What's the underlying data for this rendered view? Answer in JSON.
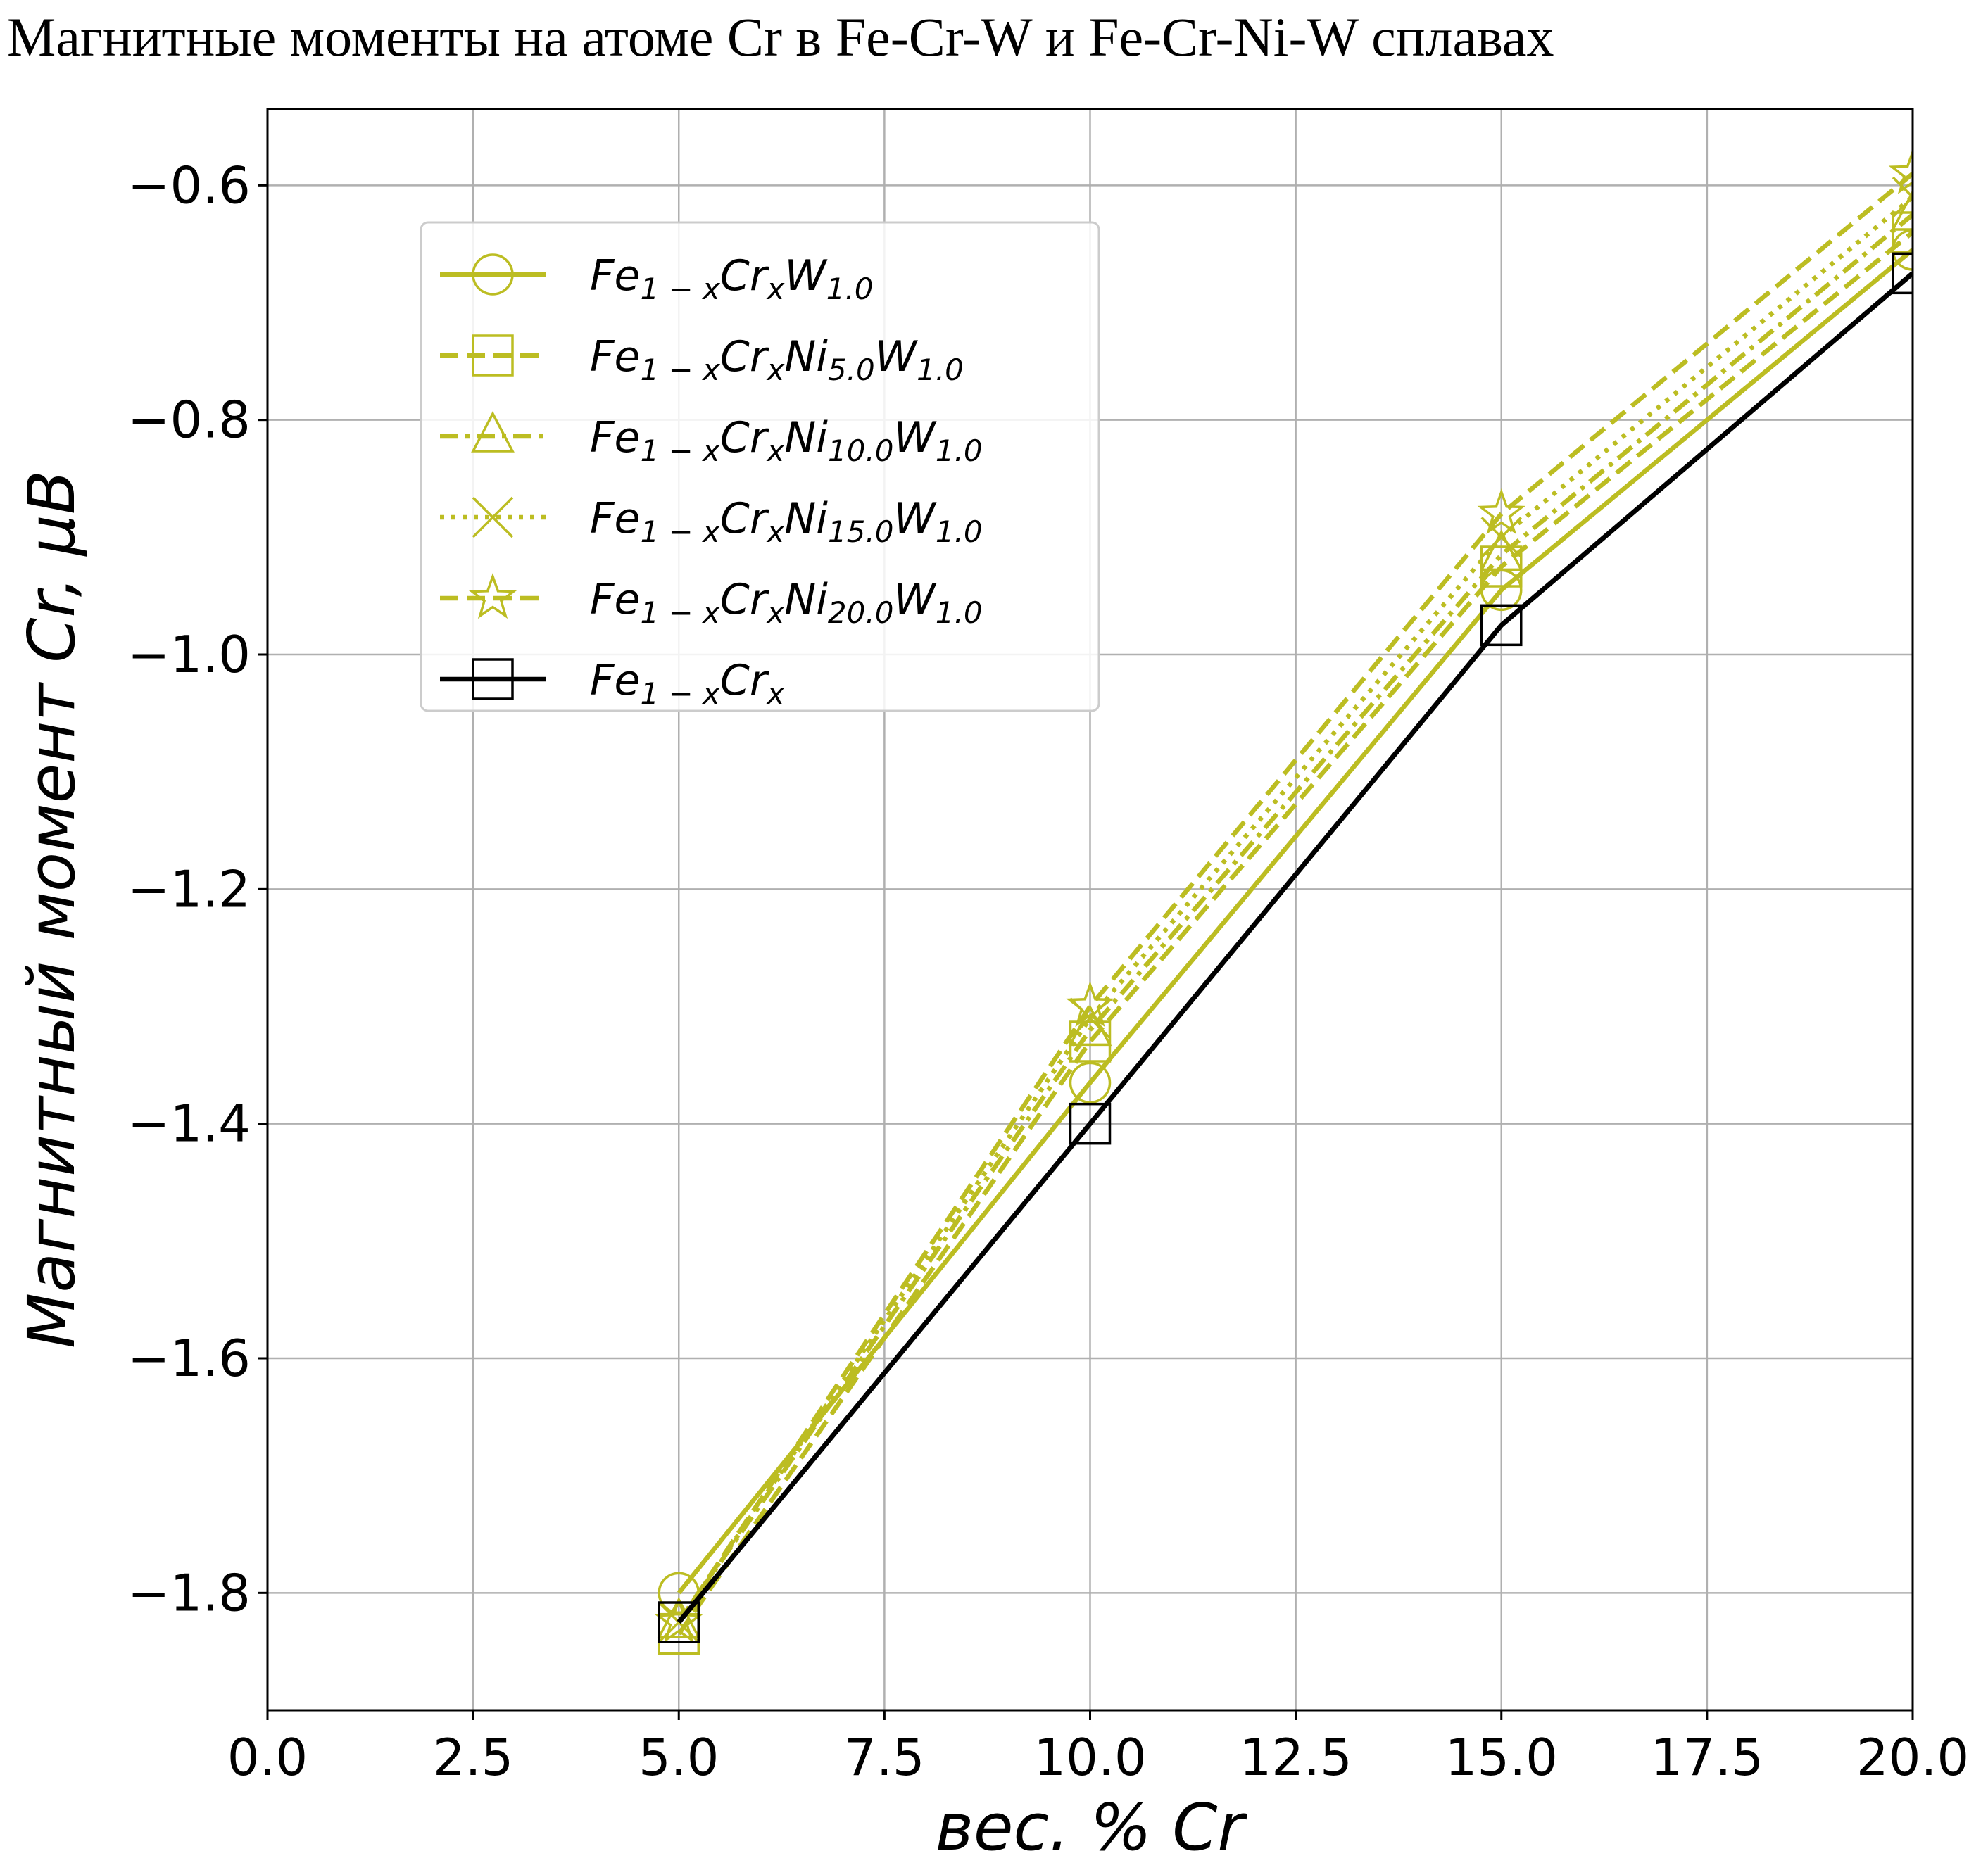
{
  "title": "Магнитные моменты на атоме Cr в Fe-Cr-W и Fe-Cr-Ni-W сплавах",
  "chart_data": {
    "type": "line",
    "title": "Магнитные моменты на атоме Cr в Fe-Cr-W и Fe-Cr-Ni-W сплавах",
    "xlabel": "вес.  % Cr",
    "ylabel": "Магнитный момент Cr,  μB",
    "xlim": [
      0,
      20
    ],
    "ylim": [
      -1.9,
      -0.535
    ],
    "grid": true,
    "legend_position": "upper-left",
    "x_ticks": [
      "0.0",
      "2.5",
      "5.0",
      "7.5",
      "10.0",
      "12.5",
      "15.0",
      "17.5",
      "20.0"
    ],
    "y_ticks": [
      "−1.8",
      "−1.6",
      "−1.4",
      "−1.2",
      "−1.0",
      "−0.8",
      "−0.6"
    ],
    "x": [
      5,
      10,
      15,
      20
    ],
    "series": [
      {
        "name": "Fe1−xCrxW1.0",
        "label_base": "Fe",
        "label_parts": [
          [
            "1 − x",
            "Cr"
          ],
          [
            "x",
            "W"
          ],
          [
            "1.0",
            ""
          ]
        ],
        "values": [
          -1.8,
          -1.365,
          -0.945,
          -0.655
        ],
        "color": "#bcbd22",
        "dash": "solid",
        "marker": "circle"
      },
      {
        "name": "Fe1−xCrxNi5.0W1.0",
        "label_base": "Fe",
        "label_parts": [
          [
            "1 − x",
            "Cr"
          ],
          [
            "x",
            "Ni"
          ],
          [
            "5.0",
            "W"
          ],
          [
            "1.0",
            ""
          ]
        ],
        "values": [
          -1.835,
          -1.33,
          -0.925,
          -0.64
        ],
        "color": "#bcbd22",
        "dash": "dashed",
        "marker": "square"
      },
      {
        "name": "Fe1−xCrxNi10.0W1.0",
        "label_base": "Fe",
        "label_parts": [
          [
            "1 − x",
            "Cr"
          ],
          [
            "x",
            "Ni"
          ],
          [
            "10.0",
            "W"
          ],
          [
            "1.0",
            ""
          ]
        ],
        "values": [
          -1.825,
          -1.32,
          -0.915,
          -0.625
        ],
        "color": "#bcbd22",
        "dash": "dashdot",
        "marker": "triangle"
      },
      {
        "name": "Fe1−xCrxNi15.0W1.0",
        "label_base": "Fe",
        "label_parts": [
          [
            "1 − x",
            "Cr"
          ],
          [
            "x",
            "Ni"
          ],
          [
            "15.0",
            "W"
          ],
          [
            "1.0",
            ""
          ]
        ],
        "values": [
          -1.825,
          -1.31,
          -0.9,
          -0.61
        ],
        "color": "#bcbd22",
        "dash": "dotted",
        "marker": "x"
      },
      {
        "name": "Fe1−xCrxNi20.0W1.0",
        "label_base": "Fe",
        "label_parts": [
          [
            "1 − x",
            "Cr"
          ],
          [
            "x",
            "Ni"
          ],
          [
            "20.0",
            "W"
          ],
          [
            "1.0",
            ""
          ]
        ],
        "values": [
          -1.825,
          -1.3,
          -0.88,
          -0.59
        ],
        "color": "#bcbd22",
        "dash": "dashed",
        "marker": "star"
      },
      {
        "name": "Fe1−xCrx",
        "label_base": "Fe",
        "label_parts": [
          [
            "1 − x",
            "Cr"
          ],
          [
            "x",
            ""
          ]
        ],
        "values": [
          -1.825,
          -1.4,
          -0.975,
          -0.675
        ],
        "color": "#000000",
        "dash": "solid",
        "marker": "square"
      }
    ]
  }
}
